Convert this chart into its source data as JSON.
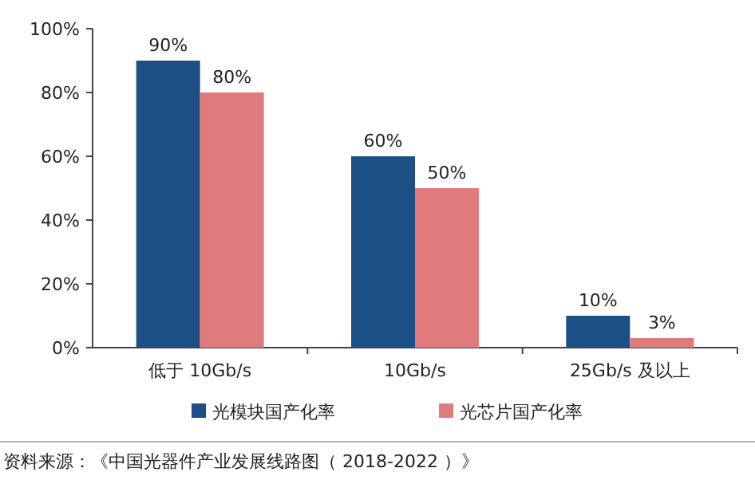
{
  "chart_data": {
    "type": "bar",
    "categories": [
      "低于 10Gb/s",
      "10Gb/s",
      "25Gb/s 及以上"
    ],
    "series": [
      {
        "name": "光模块国产化率",
        "color": "#1b4f86",
        "values": [
          90,
          60,
          10
        ],
        "value_labels": [
          "90%",
          "60%",
          "10%"
        ]
      },
      {
        "name": "光芯片国产化率",
        "color": "#e07a7c",
        "values": [
          80,
          50,
          3
        ],
        "value_labels": [
          "80%",
          "50%",
          "3%"
        ]
      }
    ],
    "ylim": [
      0,
      100
    ],
    "yticks": [
      {
        "value": 0,
        "label": "0%"
      },
      {
        "value": 20,
        "label": "20%"
      },
      {
        "value": 40,
        "label": "40%"
      },
      {
        "value": 60,
        "label": "60%"
      },
      {
        "value": 80,
        "label": "80%"
      },
      {
        "value": 100,
        "label": "100%"
      }
    ],
    "legend": "bottom",
    "annotations": [
      "资料来源：《中国光器件产业发展线路图（ 2018-2022 ）》"
    ]
  }
}
